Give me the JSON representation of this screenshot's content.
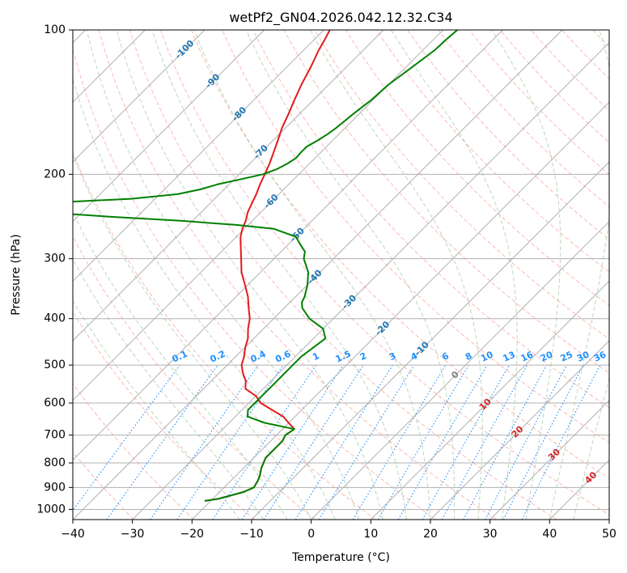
{
  "chart_data": {
    "type": "line",
    "title": "wetPf2_GN04.2026.042.12.32.C34",
    "xlabel": "Temperature (°C)",
    "ylabel": "Pressure (hPa)",
    "xlim": [
      -40,
      50
    ],
    "ylim": [
      1050,
      100
    ],
    "y_scale": "log",
    "x_ticks": [
      -40,
      -30,
      -20,
      -10,
      0,
      10,
      20,
      30,
      40,
      50
    ],
    "x_tick_labels": [
      "−40",
      "−30",
      "−20",
      "−10",
      "0",
      "10",
      "20",
      "30",
      "40",
      "50"
    ],
    "y_ticks": [
      100,
      200,
      300,
      400,
      500,
      600,
      700,
      800,
      900,
      1000
    ],
    "y_tick_labels": [
      "100",
      "200",
      "300",
      "400",
      "500",
      "600",
      "700",
      "800",
      "900",
      "1000"
    ],
    "grid": true,
    "skew": true,
    "series": [
      {
        "color": "#e41a1c",
        "pressure": [
          960,
          950,
          920,
          900,
          870,
          850,
          820,
          800,
          780,
          750,
          720,
          700,
          680,
          660,
          640,
          620,
          600,
          580,
          560,
          540,
          520,
          500,
          480,
          460,
          440,
          420,
          400,
          380,
          360,
          340,
          320,
          300,
          280,
          270,
          260,
          250,
          240,
          230,
          220,
          210,
          200,
          190,
          180,
          170,
          160,
          150,
          140,
          130,
          120,
          110,
          105,
          100
        ],
        "values": [
          -21,
          -19,
          -16,
          -15,
          -15.5,
          -16,
          -17,
          -17.5,
          -18,
          -18,
          -18,
          -18.5,
          -18,
          -20,
          -22,
          -25,
          -28,
          -30,
          -33,
          -34.2,
          -36,
          -37.6,
          -38.6,
          -39.9,
          -41,
          -42.6,
          -44,
          -46,
          -48,
          -50.5,
          -53.2,
          -55.5,
          -58,
          -59.3,
          -60.3,
          -61.1,
          -62.2,
          -63,
          -63.8,
          -64.8,
          -65.7,
          -66.7,
          -67.9,
          -69.2,
          -70.6,
          -71.8,
          -73.2,
          -74.6,
          -75.9,
          -77.5,
          -78.2,
          -79
        ]
      },
      {
        "color": "#008000",
        "pressure": [
          960,
          950,
          920,
          900,
          870,
          850,
          820,
          800,
          780,
          750,
          720,
          700,
          680,
          660,
          650,
          640,
          620,
          600,
          580,
          560,
          540,
          520,
          500,
          480,
          460,
          440,
          420,
          400,
          380,
          370,
          360,
          340,
          320,
          300,
          290,
          280,
          270,
          260,
          255,
          250,
          245,
          240,
          235,
          230,
          225,
          220,
          215,
          210,
          205,
          200,
          195,
          190,
          185,
          180,
          175,
          170,
          165,
          160,
          150,
          140,
          130,
          120,
          110,
          105,
          100
        ],
        "values": [
          -21,
          -19,
          -16,
          -15,
          -15.5,
          -16,
          -17,
          -17.5,
          -18,
          -18,
          -18,
          -18.5,
          -18,
          -24,
          -26,
          -28,
          -29,
          -29,
          -29,
          -29,
          -29,
          -29,
          -29,
          -29,
          -28.5,
          -28,
          -30,
          -34,
          -37,
          -38,
          -38.5,
          -40,
          -42,
          -45,
          -46,
          -48,
          -50,
          -55,
          -62,
          -72,
          -85,
          -96,
          -100,
          -99,
          -84,
          -77,
          -74,
          -72,
          -69,
          -66,
          -64.5,
          -63.7,
          -63.2,
          -63.3,
          -63.3,
          -62.5,
          -61.9,
          -61.5,
          -61,
          -60.3,
          -60,
          -59,
          -58,
          -57.9,
          -57.6
        ]
      }
    ],
    "isotherm_labels": [
      "-100",
      "-90",
      "-80",
      "-70",
      "-60",
      "-50",
      "-40",
      "-30",
      "-20",
      "-10"
    ],
    "mixing_ratio_labels": [
      "0.1",
      "0.2",
      "0.4",
      "0.6",
      "1",
      "1.5",
      "2",
      "3",
      "4",
      "6",
      "8",
      "10",
      "13",
      "16",
      "20",
      "25",
      "30",
      "36"
    ],
    "moist_adiabat_labels": [
      "0",
      "10",
      "20",
      "30",
      "40"
    ],
    "colors": {
      "isotherm_label": "#1f77b4",
      "mixing_ratio": "#1e90ff",
      "dry_adiabat": "#fa8072",
      "moist_adiabat": "#8fbc8f",
      "moist_label": "#d62728",
      "zero_label": "#808080",
      "grid": "#b0b0b0"
    }
  }
}
